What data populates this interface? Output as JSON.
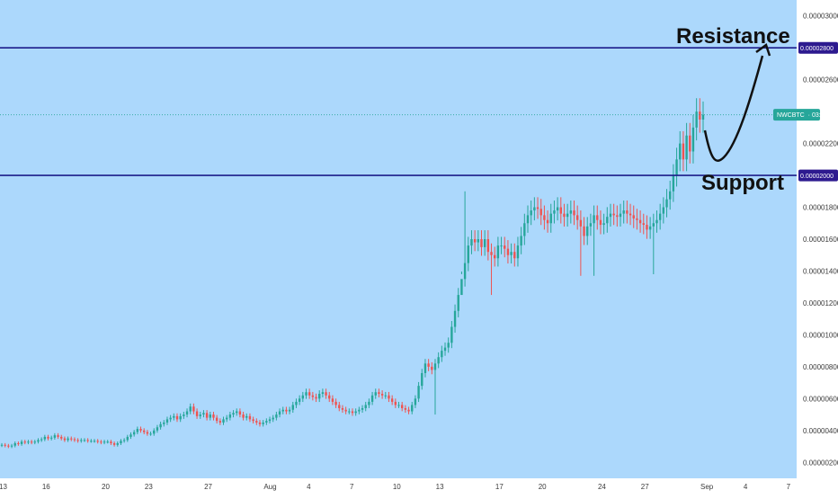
{
  "chart_data": {
    "type": "candlestick",
    "symbol": "NWCBTC",
    "price_label": "03:18:14",
    "colors": {
      "background": "#acd8fc",
      "price_axis_bg": "#ffffff",
      "up": "#26a69a",
      "down": "#ef5350",
      "level_line": "#1c1c8a",
      "level_label_bg": "#2d1a8f",
      "symbol_badge_bg": "#26a69a",
      "annotation": "#111111"
    },
    "y_axis": {
      "min": 1e-07,
      "max": 3.1e-06,
      "ticks": [
        "0.00003000",
        "0.00002600",
        "0.00002200",
        "0.00001800",
        "0.00001600",
        "0.00001400",
        "0.00001200",
        "0.00001000",
        "0.00000800",
        "0.00000600",
        "0.00000400",
        "0.00000200"
      ],
      "tick_values": [
        3e-06,
        2.6e-06,
        2.2e-06,
        1.8e-06,
        1.6e-06,
        1.4e-06,
        1.2e-06,
        1e-06,
        8e-07,
        6e-07,
        4e-07,
        2e-07
      ]
    },
    "x_axis": {
      "labels": [
        "13",
        "16",
        "20",
        "23",
        "27",
        "Aug",
        "4",
        "7",
        "10",
        "13",
        "17",
        "20",
        "24",
        "27",
        "Sep",
        "4",
        "7"
      ],
      "label_index": [
        0,
        13,
        31,
        44,
        62,
        80,
        93,
        106,
        119,
        132,
        150,
        163,
        181,
        194,
        212,
        225,
        238
      ]
    },
    "levels": [
      {
        "name": "Resistance",
        "value": 2.8e-06,
        "label": "0.00002800"
      },
      {
        "name": "Support",
        "value": 2e-06,
        "label": "0.00002000"
      }
    ],
    "current_price": 2.38e-06,
    "closes": [
      3.1e-07,
      3.05e-07,
      3e-07,
      3.05e-07,
      3.2e-07,
      3.15e-07,
      3.3e-07,
      3.25e-07,
      3.3e-07,
      3.25e-07,
      3.3e-07,
      3.4e-07,
      3.45e-07,
      3.6e-07,
      3.5e-07,
      3.55e-07,
      3.7e-07,
      3.6e-07,
      3.5e-07,
      3.4e-07,
      3.5e-07,
      3.45e-07,
      3.4e-07,
      3.35e-07,
      3.4e-07,
      3.4e-07,
      3.35e-07,
      3.35e-07,
      3.35e-07,
      3.3e-07,
      3.25e-07,
      3.3e-07,
      3.3e-07,
      3.2e-07,
      3.1e-07,
      3.2e-07,
      3.35e-07,
      3.4e-07,
      3.6e-07,
      3.75e-07,
      3.9e-07,
      4.1e-07,
      4e-07,
      3.9e-07,
      3.8e-07,
      3.8e-07,
      4e-07,
      4.2e-07,
      4.4e-07,
      4.5e-07,
      4.7e-07,
      4.8e-07,
      4.9e-07,
      4.7e-07,
      4.9e-07,
      5e-07,
      5.2e-07,
      5.5e-07,
      5.2e-07,
      4.9e-07,
      5e-07,
      5.1e-07,
      4.8e-07,
      5e-07,
      4.8e-07,
      4.6e-07,
      4.5e-07,
      4.7e-07,
      4.8e-07,
      5e-07,
      5.1e-07,
      5.2e-07,
      5e-07,
      4.8e-07,
      4.9e-07,
      4.7e-07,
      4.6e-07,
      4.5e-07,
      4.4e-07,
      4.5e-07,
      4.6e-07,
      4.7e-07,
      4.8e-07,
      5e-07,
      5.2e-07,
      5.3e-07,
      5.2e-07,
      5.3e-07,
      5.6e-07,
      5.8e-07,
      6e-07,
      6.2e-07,
      6.4e-07,
      6.2e-07,
      6.1e-07,
      6e-07,
      6.3e-07,
      6.4e-07,
      6.2e-07,
      6e-07,
      5.8e-07,
      5.6e-07,
      5.4e-07,
      5.3e-07,
      5.2e-07,
      5.2e-07,
      5.1e-07,
      5.2e-07,
      5.3e-07,
      5.4e-07,
      5.6e-07,
      5.8e-07,
      6.2e-07,
      6.4e-07,
      6.3e-07,
      6.2e-07,
      6.2e-07,
      6e-07,
      5.8e-07,
      5.6e-07,
      5.6e-07,
      5.4e-07,
      5.3e-07,
      5.2e-07,
      5.6e-07,
      6e-07,
      6.8e-07,
      7.6e-07,
      8.2e-07,
      8e-07,
      7.8e-07,
      8.2e-07,
      8.6e-07,
      9e-07,
      9.2e-07,
      9.5e-07,
      1.05e-06,
      1.15e-06,
      1.25e-06,
      1.35e-06,
      1.45e-06,
      1.56e-06,
      1.6e-06,
      1.58e-06,
      1.6e-06,
      1.55e-06,
      1.6e-06,
      1.52e-06,
      1.5e-06,
      1.48e-06,
      1.56e-06,
      1.56e-06,
      1.54e-06,
      1.5e-06,
      1.52e-06,
      1.48e-06,
      1.56e-06,
      1.62e-06,
      1.7e-06,
      1.75e-06,
      1.78e-06,
      1.8e-06,
      1.79e-06,
      1.75e-06,
      1.72e-06,
      1.7e-06,
      1.76e-06,
      1.78e-06,
      1.8e-06,
      1.76e-06,
      1.74e-06,
      1.76e-06,
      1.78e-06,
      1.75e-06,
      1.72e-06,
      1.68e-06,
      1.62e-06,
      1.68e-06,
      1.7e-06,
      1.75e-06,
      1.72e-06,
      1.69e-06,
      1.7e-06,
      1.74e-06,
      1.76e-06,
      1.75e-06,
      1.74e-06,
      1.76e-06,
      1.78e-06,
      1.76e-06,
      1.75e-06,
      1.73e-06,
      1.72e-06,
      1.7e-06,
      1.69e-06,
      1.66e-06,
      1.68e-06,
      1.7e-06,
      1.72e-06,
      1.76e-06,
      1.8e-06,
      1.85e-06,
      1.9e-06,
      2e-06,
      2.1e-06,
      2.2e-06,
      2.1e-06,
      2.25e-06,
      2.15e-06,
      2.3e-06,
      2.4e-06,
      2.35e-06,
      2.38e-06
    ],
    "spikes": [
      {
        "index": 140,
        "high": 1.9e-06
      },
      {
        "index": 139,
        "low": 1.38e-06
      },
      {
        "index": 148,
        "low": 1.25e-06
      },
      {
        "index": 175,
        "low": 1.37e-06
      },
      {
        "index": 179,
        "low": 1.37e-06
      },
      {
        "index": 197,
        "low": 1.38e-06
      },
      {
        "index": 131,
        "low": 5e-07
      }
    ],
    "annotations": [
      {
        "label": "Resistance"
      },
      {
        "label": "Support"
      }
    ]
  }
}
